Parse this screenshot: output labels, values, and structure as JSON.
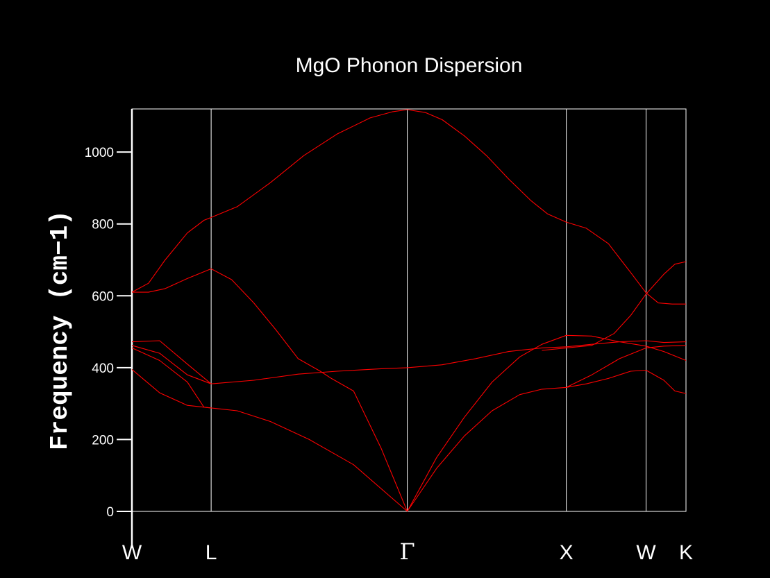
{
  "chart_data": {
    "type": "line",
    "title": "MgO Phonon Dispersion",
    "xlabel": "",
    "ylabel": "Frequency (cm−1)",
    "ylim": [
      0,
      1120
    ],
    "xlim": [
      0,
      1
    ],
    "grid": "vertical lines at high-symmetry points",
    "colors": {
      "background": "#000000",
      "axes": "#ffffff",
      "series": "#ff0000"
    },
    "x_ticks": [
      {
        "label": "W",
        "pos": 0.0
      },
      {
        "label": "L",
        "pos": 0.143
      },
      {
        "label": "Γ",
        "pos": 0.497
      },
      {
        "label": "X",
        "pos": 0.784
      },
      {
        "label": "W",
        "pos": 0.928
      },
      {
        "label": "K",
        "pos": 1.0
      }
    ],
    "y_ticks": [
      0,
      200,
      400,
      600,
      800,
      1000
    ],
    "series": [
      {
        "values": [
          [
            0.0,
            610
          ],
          [
            0.03,
            635
          ],
          [
            0.06,
            700
          ],
          [
            0.1,
            775
          ],
          [
            0.13,
            810
          ],
          [
            0.143,
            818
          ],
          [
            0.19,
            848
          ],
          [
            0.25,
            915
          ],
          [
            0.31,
            990
          ],
          [
            0.37,
            1050
          ],
          [
            0.43,
            1095
          ],
          [
            0.47,
            1112
          ],
          [
            0.497,
            1118
          ],
          [
            0.53,
            1110
          ],
          [
            0.56,
            1090
          ],
          [
            0.6,
            1045
          ],
          [
            0.64,
            990
          ],
          [
            0.68,
            925
          ],
          [
            0.72,
            865
          ],
          [
            0.75,
            828
          ],
          [
            0.784,
            805
          ],
          [
            0.82,
            788
          ],
          [
            0.86,
            745
          ],
          [
            0.9,
            665
          ],
          [
            0.928,
            608
          ],
          [
            0.95,
            580
          ],
          [
            0.975,
            577
          ],
          [
            1.0,
            577
          ]
        ]
      },
      {
        "values": [
          [
            0.0,
            610
          ],
          [
            0.03,
            610
          ],
          [
            0.06,
            620
          ],
          [
            0.1,
            648
          ],
          [
            0.143,
            675
          ],
          [
            0.18,
            645
          ],
          [
            0.22,
            580
          ],
          [
            0.26,
            505
          ],
          [
            0.3,
            425
          ],
          [
            0.34,
            390
          ],
          [
            0.36,
            370
          ],
          [
            0.4,
            335
          ],
          [
            0.45,
            175
          ],
          [
            0.497,
            0
          ]
        ]
      },
      {
        "values": [
          [
            0.0,
            472
          ],
          [
            0.05,
            475
          ],
          [
            0.1,
            410
          ],
          [
            0.143,
            355
          ],
          [
            0.22,
            365
          ],
          [
            0.3,
            382
          ],
          [
            0.37,
            390
          ],
          [
            0.45,
            397
          ],
          [
            0.497,
            400
          ],
          [
            0.56,
            408
          ],
          [
            0.62,
            425
          ],
          [
            0.68,
            445
          ],
          [
            0.74,
            455
          ],
          [
            0.784,
            458
          ],
          [
            0.83,
            465
          ],
          [
            0.88,
            472
          ],
          [
            0.928,
            475
          ],
          [
            0.96,
            470
          ],
          [
            1.0,
            472
          ]
        ]
      },
      {
        "values": [
          [
            0.0,
            462
          ],
          [
            0.05,
            440
          ],
          [
            0.1,
            380
          ],
          [
            0.143,
            355
          ]
        ]
      },
      {
        "values": [
          [
            0.0,
            455
          ],
          [
            0.05,
            420
          ],
          [
            0.1,
            360
          ],
          [
            0.13,
            290
          ],
          [
            0.143,
            288
          ],
          [
            0.19,
            280
          ],
          [
            0.25,
            250
          ],
          [
            0.32,
            200
          ],
          [
            0.4,
            130
          ],
          [
            0.497,
            0
          ]
        ]
      },
      {
        "values": [
          [
            0.0,
            395
          ],
          [
            0.05,
            330
          ],
          [
            0.1,
            295
          ],
          [
            0.143,
            288
          ]
        ]
      },
      {
        "values": [
          [
            0.497,
            0
          ],
          [
            0.55,
            150
          ],
          [
            0.6,
            262
          ],
          [
            0.65,
            360
          ],
          [
            0.7,
            430
          ],
          [
            0.74,
            465
          ],
          [
            0.784,
            490
          ],
          [
            0.83,
            488
          ],
          [
            0.88,
            472
          ],
          [
            0.928,
            460
          ],
          [
            0.96,
            445
          ],
          [
            1.0,
            420
          ]
        ]
      },
      {
        "values": [
          [
            0.497,
            0
          ],
          [
            0.55,
            120
          ],
          [
            0.6,
            210
          ],
          [
            0.65,
            280
          ],
          [
            0.7,
            325
          ],
          [
            0.74,
            340
          ],
          [
            0.784,
            345
          ],
          [
            0.82,
            355
          ],
          [
            0.86,
            370
          ],
          [
            0.9,
            390
          ],
          [
            0.928,
            393
          ],
          [
            0.96,
            365
          ],
          [
            0.98,
            335
          ],
          [
            1.0,
            328
          ]
        ]
      },
      {
        "values": [
          [
            0.74,
            448
          ],
          [
            0.784,
            455
          ],
          [
            0.83,
            462
          ],
          [
            0.87,
            495
          ],
          [
            0.9,
            545
          ],
          [
            0.928,
            605
          ],
          [
            0.96,
            660
          ],
          [
            0.98,
            688
          ],
          [
            1.0,
            695
          ]
        ]
      },
      {
        "values": [
          [
            0.784,
            345
          ],
          [
            0.83,
            380
          ],
          [
            0.88,
            425
          ],
          [
            0.928,
            455
          ],
          [
            0.96,
            460
          ],
          [
            1.0,
            462
          ]
        ]
      }
    ]
  }
}
